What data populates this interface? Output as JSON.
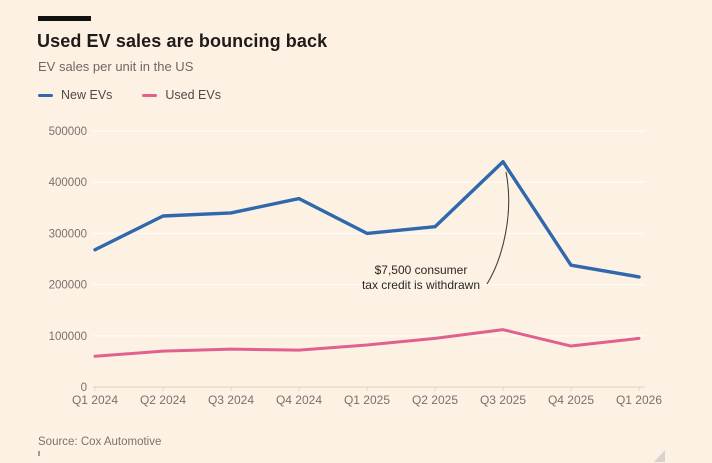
{
  "header": {
    "title": "Used EV sales are bouncing back",
    "subtitle": "EV sales per unit in the US"
  },
  "legend": [
    {
      "label": "New EVs",
      "color": "#2f68ab"
    },
    {
      "label": "Used EVs",
      "color": "#e2608e"
    }
  ],
  "chart_data": {
    "type": "line",
    "title": "Used EV sales are bouncing back",
    "subtitle": "EV sales per unit in the US",
    "xlabel": "",
    "ylabel": "",
    "categories": [
      "Q1 2024",
      "Q2 2024",
      "Q3 2024",
      "Q4 2024",
      "Q1 2025",
      "Q2 2025",
      "Q3 2025",
      "Q4 2025",
      "Q1 2026"
    ],
    "series": [
      {
        "name": "New EVs",
        "color": "#2f68ab",
        "values": [
          268000,
          334000,
          340000,
          368000,
          300000,
          313000,
          440000,
          238000,
          215000
        ]
      },
      {
        "name": "Used EVs",
        "color": "#e2608e",
        "values": [
          60000,
          70000,
          74000,
          72000,
          82000,
          95000,
          112000,
          80000,
          95000
        ]
      }
    ],
    "ylim": [
      0,
      500000
    ],
    "yticks": [
      0,
      100000,
      200000,
      300000,
      400000,
      500000
    ],
    "grid": true,
    "legend_position": "top",
    "annotation": "$7,500 consumer tax credit is withdrawn"
  },
  "annotation": {
    "line1": "$7,500 consumer",
    "line2": "tax credit is withdrawn"
  },
  "source": "Source: Cox Automotive",
  "colors": {
    "background": "#fdf1e4",
    "accent_bar": "#141210",
    "gridline": "#fffaf2",
    "axis_line": "#e7d6c4",
    "tick_text": "#78716b",
    "annotation_pointer": "#45403c"
  }
}
